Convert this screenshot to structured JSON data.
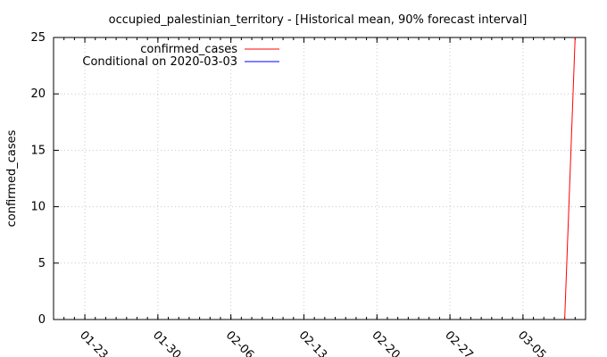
{
  "chart_data": {
    "type": "line",
    "title": "occupied_palestinian_territory -  [Historical mean, 90% forecast interval]",
    "xlabel": "",
    "ylabel": "confirmed_cases",
    "xlim": [
      "2020-01-20",
      "2020-03-11"
    ],
    "ylim": [
      0,
      25
    ],
    "yticks": [
      0,
      5,
      10,
      15,
      20,
      25
    ],
    "xticks": [
      "2020-01-23",
      "2020-01-30",
      "2020-02-06",
      "2020-02-13",
      "2020-02-20",
      "2020-02-27",
      "2020-03-05"
    ],
    "xtick_labels": [
      "01-23",
      "01-30",
      "02-06",
      "02-13",
      "02-20",
      "02-27",
      "03-05"
    ],
    "grid": true,
    "legend_position": "top-left",
    "series": [
      {
        "name": "confirmed_cases",
        "color": "#ff0000",
        "points": [
          {
            "x": "2020-03-09",
            "y": 0
          },
          {
            "x": "2020-03-10",
            "y": 25
          }
        ]
      },
      {
        "name": "Conditional on 2020-03-03",
        "color": "#0000ff",
        "points": []
      }
    ]
  }
}
